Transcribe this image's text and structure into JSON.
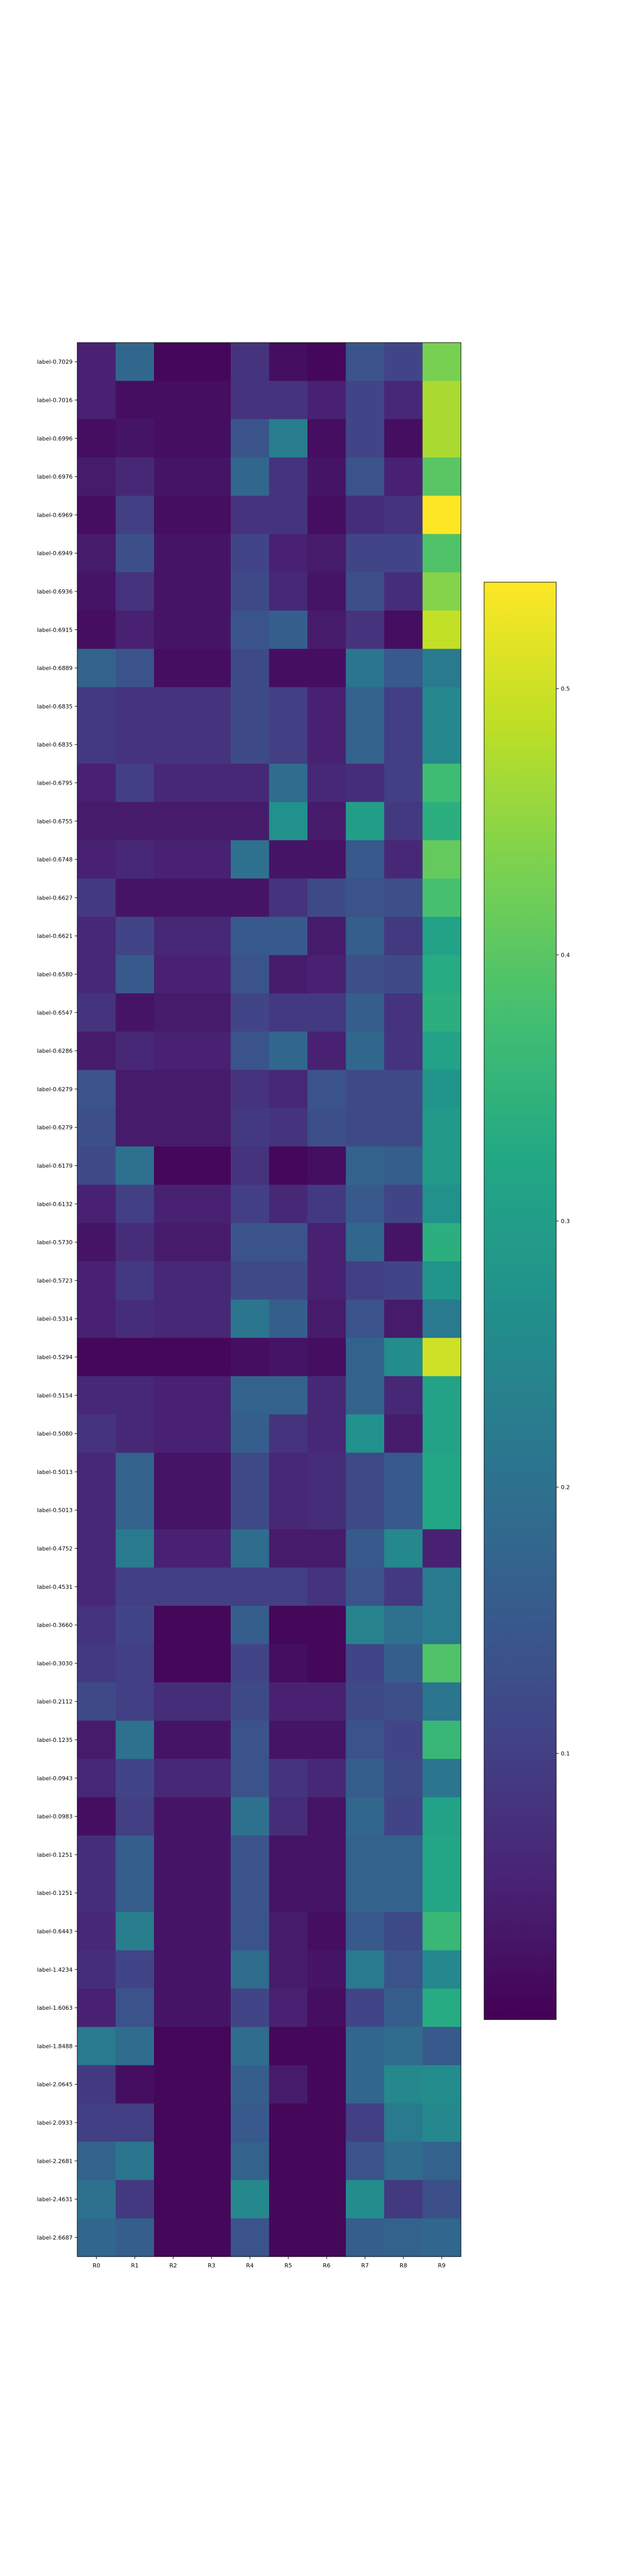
{
  "chart_data": {
    "type": "heatmap",
    "colormap": "viridis",
    "colorbar": {
      "min": 0.0,
      "max": 0.54,
      "ticks": [
        0.1,
        0.2,
        0.3,
        0.4,
        0.5
      ]
    },
    "columns": [
      "R0",
      "R1",
      "R2",
      "R3",
      "R4",
      "R5",
      "R6",
      "R7",
      "R8",
      "R9"
    ],
    "rows": [
      "label-0.7029",
      "label-0.7016",
      "label-0.6996",
      "label-0.6976",
      "label-0.6969",
      "label-0.6949",
      "label-0.6936",
      "label-0.6915",
      "label-0.6889",
      "label-0.6835",
      "label-0.6835",
      "label-0.6795",
      "label-0.6755",
      "label-0.6748",
      "label-0.6627",
      "label-0.6621",
      "label-0.6580",
      "label-0.6547",
      "label-0.6286",
      "label-0.6279",
      "label-0.6279",
      "label-0.6179",
      "label-0.6132",
      "label-0.5730",
      "label-0.5723",
      "label-0.5314",
      "label-0.5294",
      "label-0.5154",
      "label-0.5080",
      "label-0.5013",
      "label-0.5013",
      "label-0.4752",
      "label-0.4531",
      "label-0.3660",
      "label-0.3030",
      "label-0.2112",
      "label-0.1235",
      "label-0.0943",
      "label-0.0983",
      "label-0.1251",
      "label-0.1251",
      "label-0.6443",
      "label-1.4234",
      "label-1.6063",
      "label-1.8488",
      "label-2.0645",
      "label-2.0933",
      "label-2.2681",
      "label-2.4631",
      "label-2.6687"
    ],
    "values": [
      [
        0.05,
        0.18,
        0.01,
        0.01,
        0.08,
        0.02,
        0.01,
        0.14,
        0.11,
        0.43
      ],
      [
        0.05,
        0.02,
        0.02,
        0.02,
        0.08,
        0.08,
        0.05,
        0.11,
        0.06,
        0.47
      ],
      [
        0.02,
        0.03,
        0.02,
        0.02,
        0.14,
        0.23,
        0.02,
        0.11,
        0.02,
        0.47
      ],
      [
        0.04,
        0.06,
        0.03,
        0.03,
        0.18,
        0.08,
        0.03,
        0.14,
        0.05,
        0.4
      ],
      [
        0.02,
        0.1,
        0.02,
        0.02,
        0.08,
        0.08,
        0.02,
        0.07,
        0.08,
        0.54
      ],
      [
        0.04,
        0.13,
        0.03,
        0.03,
        0.11,
        0.05,
        0.04,
        0.11,
        0.11,
        0.39
      ],
      [
        0.03,
        0.08,
        0.03,
        0.03,
        0.12,
        0.06,
        0.03,
        0.13,
        0.07,
        0.44
      ],
      [
        0.02,
        0.05,
        0.03,
        0.03,
        0.14,
        0.16,
        0.04,
        0.08,
        0.02,
        0.49
      ],
      [
        0.17,
        0.14,
        0.02,
        0.02,
        0.12,
        0.02,
        0.02,
        0.21,
        0.15,
        0.22
      ],
      [
        0.09,
        0.08,
        0.08,
        0.08,
        0.12,
        0.1,
        0.05,
        0.17,
        0.1,
        0.25
      ],
      [
        0.09,
        0.08,
        0.08,
        0.08,
        0.12,
        0.1,
        0.05,
        0.17,
        0.1,
        0.25
      ],
      [
        0.05,
        0.1,
        0.06,
        0.06,
        0.06,
        0.19,
        0.06,
        0.07,
        0.1,
        0.37
      ],
      [
        0.04,
        0.04,
        0.04,
        0.04,
        0.04,
        0.27,
        0.04,
        0.3,
        0.09,
        0.34
      ],
      [
        0.05,
        0.06,
        0.05,
        0.05,
        0.2,
        0.03,
        0.03,
        0.15,
        0.06,
        0.41
      ],
      [
        0.09,
        0.03,
        0.03,
        0.03,
        0.03,
        0.08,
        0.12,
        0.14,
        0.13,
        0.38
      ],
      [
        0.06,
        0.11,
        0.06,
        0.06,
        0.15,
        0.15,
        0.04,
        0.16,
        0.09,
        0.31
      ],
      [
        0.06,
        0.15,
        0.05,
        0.05,
        0.14,
        0.04,
        0.05,
        0.13,
        0.12,
        0.33
      ],
      [
        0.08,
        0.03,
        0.04,
        0.04,
        0.11,
        0.09,
        0.09,
        0.16,
        0.08,
        0.34
      ],
      [
        0.04,
        0.06,
        0.05,
        0.05,
        0.14,
        0.18,
        0.05,
        0.18,
        0.08,
        0.31
      ],
      [
        0.14,
        0.04,
        0.04,
        0.04,
        0.08,
        0.06,
        0.14,
        0.12,
        0.12,
        0.28
      ],
      [
        0.13,
        0.04,
        0.04,
        0.04,
        0.09,
        0.08,
        0.13,
        0.12,
        0.12,
        0.29
      ],
      [
        0.12,
        0.2,
        0.01,
        0.01,
        0.08,
        0.01,
        0.02,
        0.17,
        0.16,
        0.29
      ],
      [
        0.05,
        0.1,
        0.05,
        0.05,
        0.1,
        0.06,
        0.09,
        0.15,
        0.11,
        0.27
      ],
      [
        0.03,
        0.07,
        0.04,
        0.04,
        0.14,
        0.14,
        0.05,
        0.18,
        0.03,
        0.34
      ],
      [
        0.05,
        0.09,
        0.06,
        0.06,
        0.12,
        0.12,
        0.05,
        0.1,
        0.11,
        0.28
      ],
      [
        0.05,
        0.07,
        0.06,
        0.06,
        0.21,
        0.16,
        0.04,
        0.14,
        0.04,
        0.22
      ],
      [
        0.01,
        0.01,
        0.01,
        0.01,
        0.02,
        0.03,
        0.02,
        0.17,
        0.26,
        0.5
      ],
      [
        0.06,
        0.06,
        0.05,
        0.05,
        0.17,
        0.17,
        0.06,
        0.17,
        0.06,
        0.31
      ],
      [
        0.08,
        0.06,
        0.05,
        0.05,
        0.16,
        0.08,
        0.06,
        0.27,
        0.04,
        0.31
      ],
      [
        0.06,
        0.17,
        0.03,
        0.03,
        0.12,
        0.06,
        0.07,
        0.12,
        0.15,
        0.32
      ],
      [
        0.06,
        0.17,
        0.03,
        0.03,
        0.12,
        0.06,
        0.07,
        0.12,
        0.15,
        0.32
      ],
      [
        0.06,
        0.22,
        0.05,
        0.05,
        0.19,
        0.04,
        0.04,
        0.15,
        0.25,
        0.05
      ],
      [
        0.06,
        0.1,
        0.1,
        0.1,
        0.1,
        0.1,
        0.08,
        0.14,
        0.09,
        0.22
      ],
      [
        0.08,
        0.11,
        0.01,
        0.01,
        0.16,
        0.01,
        0.01,
        0.24,
        0.2,
        0.22
      ],
      [
        0.09,
        0.1,
        0.01,
        0.01,
        0.11,
        0.02,
        0.01,
        0.11,
        0.16,
        0.39
      ],
      [
        0.12,
        0.1,
        0.07,
        0.07,
        0.12,
        0.05,
        0.05,
        0.12,
        0.13,
        0.21
      ],
      [
        0.04,
        0.2,
        0.03,
        0.03,
        0.14,
        0.03,
        0.03,
        0.14,
        0.11,
        0.36
      ],
      [
        0.06,
        0.11,
        0.06,
        0.06,
        0.14,
        0.08,
        0.06,
        0.16,
        0.12,
        0.21
      ],
      [
        0.02,
        0.1,
        0.03,
        0.03,
        0.2,
        0.07,
        0.03,
        0.18,
        0.11,
        0.31
      ],
      [
        0.07,
        0.16,
        0.03,
        0.03,
        0.14,
        0.03,
        0.03,
        0.17,
        0.17,
        0.32
      ],
      [
        0.07,
        0.16,
        0.03,
        0.03,
        0.14,
        0.03,
        0.03,
        0.17,
        0.17,
        0.32
      ],
      [
        0.06,
        0.23,
        0.03,
        0.03,
        0.14,
        0.04,
        0.02,
        0.15,
        0.12,
        0.36
      ],
      [
        0.07,
        0.11,
        0.03,
        0.03,
        0.19,
        0.04,
        0.03,
        0.22,
        0.14,
        0.25
      ],
      [
        0.05,
        0.14,
        0.03,
        0.03,
        0.11,
        0.05,
        0.02,
        0.11,
        0.16,
        0.33
      ],
      [
        0.22,
        0.19,
        0.01,
        0.01,
        0.19,
        0.01,
        0.01,
        0.18,
        0.19,
        0.15
      ],
      [
        0.09,
        0.02,
        0.01,
        0.01,
        0.16,
        0.04,
        0.01,
        0.18,
        0.25,
        0.26
      ],
      [
        0.1,
        0.1,
        0.01,
        0.01,
        0.15,
        0.01,
        0.01,
        0.1,
        0.22,
        0.25
      ],
      [
        0.17,
        0.21,
        0.01,
        0.01,
        0.17,
        0.01,
        0.01,
        0.14,
        0.19,
        0.17
      ],
      [
        0.2,
        0.09,
        0.01,
        0.01,
        0.25,
        0.01,
        0.01,
        0.26,
        0.09,
        0.13
      ],
      [
        0.18,
        0.16,
        0.01,
        0.01,
        0.14,
        0.01,
        0.01,
        0.16,
        0.17,
        0.18
      ]
    ]
  }
}
